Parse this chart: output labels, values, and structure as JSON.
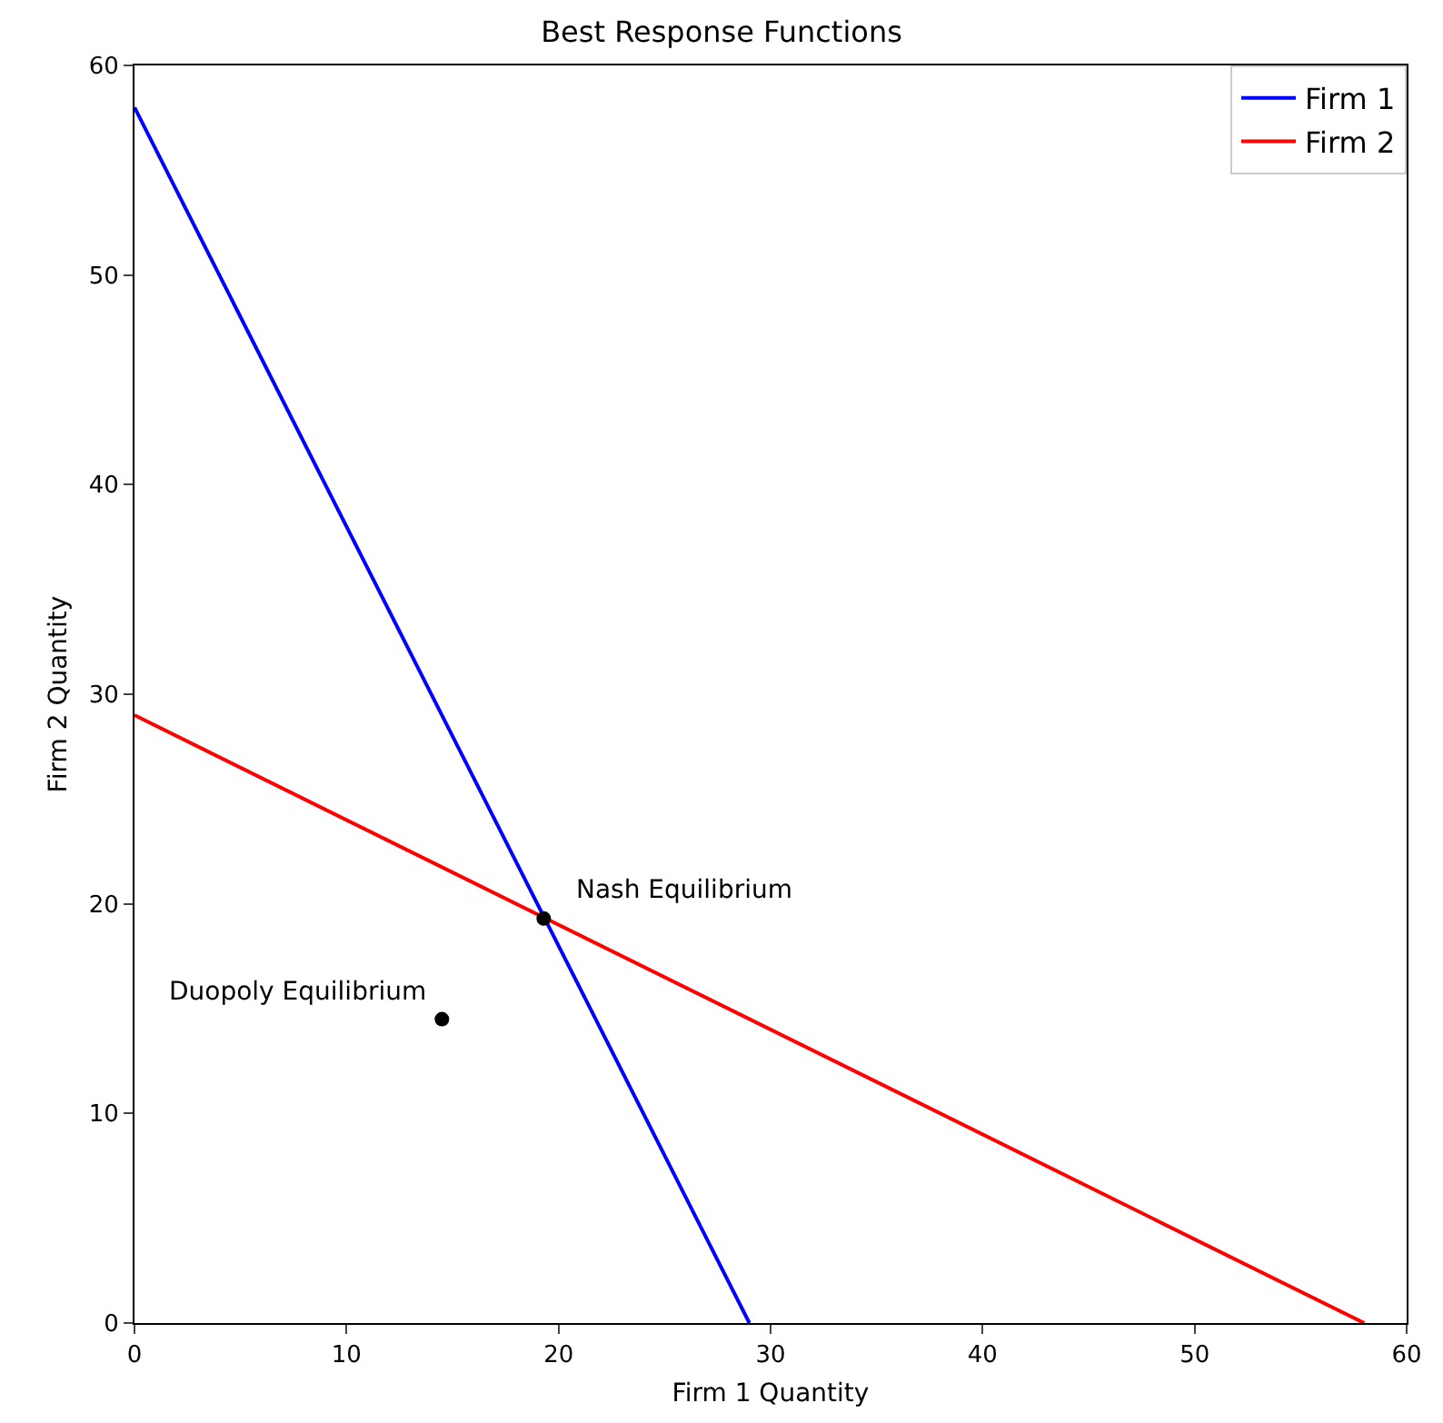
{
  "chart_data": {
    "type": "line",
    "title": "Best Response Functions",
    "xlabel": "Firm 1 Quantity",
    "ylabel": "Firm 2 Quantity",
    "series": [
      {
        "name": "Firm 1",
        "color": "#0000ff",
        "x": [
          0,
          29
        ],
        "values": [
          58,
          0
        ]
      },
      {
        "name": "Firm 2",
        "color": "#ff0000",
        "x": [
          0,
          58
        ],
        "values": [
          29,
          0
        ]
      },
      {
        "type": "scatter",
        "color": "#000000",
        "x": [
          19.3,
          14.5
        ],
        "values": [
          19.3,
          14.5
        ],
        "marker": "circle"
      }
    ],
    "annotations": [
      {
        "text": "Nash Equilibrium",
        "x": 19.3,
        "y": 19.3
      },
      {
        "text": "Duopoly Equilibrium",
        "x": 14.5,
        "y": 14.5
      }
    ],
    "xlim": [
      0,
      60
    ],
    "ylim": [
      0,
      60
    ],
    "xticks": [
      0,
      10,
      20,
      30,
      40,
      50,
      60
    ],
    "yticks": [
      0,
      10,
      20,
      30,
      40,
      50,
      60
    ],
    "legend": "top right",
    "marker": "none",
    "line_style": "solid"
  }
}
